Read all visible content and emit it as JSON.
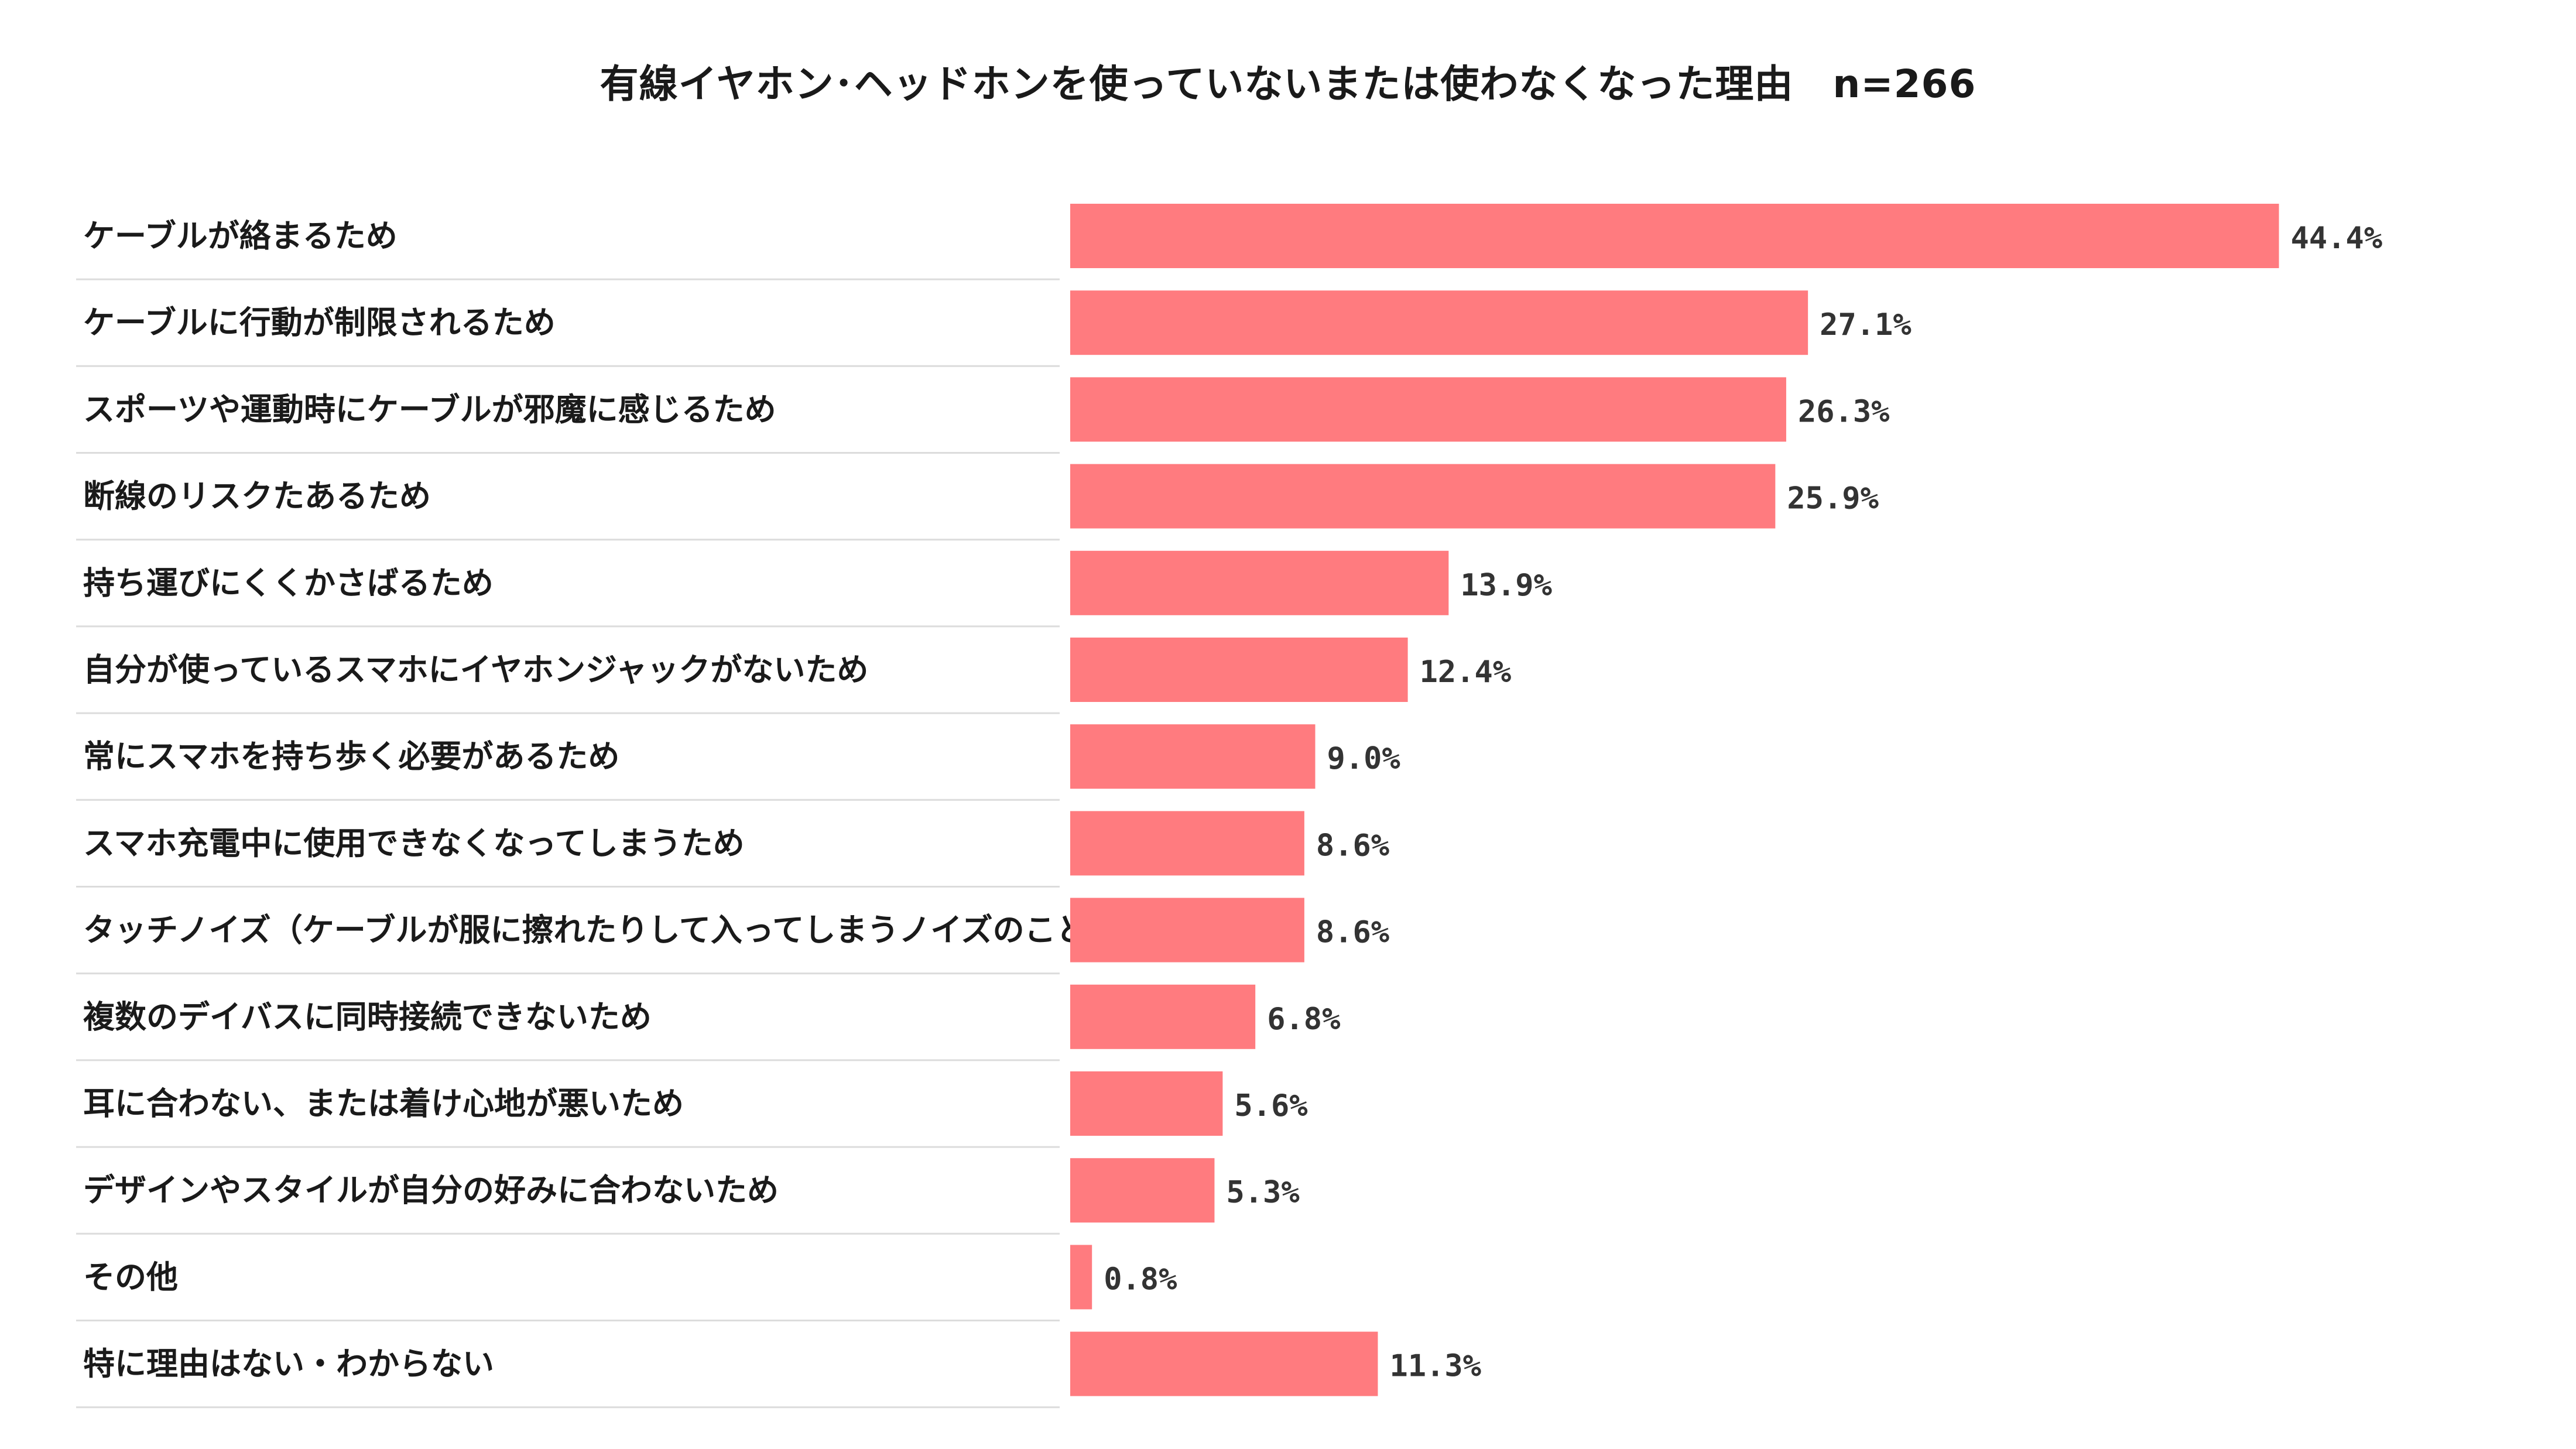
{
  "chart_data": {
    "type": "bar",
    "orientation": "horizontal",
    "title": "有線イヤホン･ヘッドホンを使っていないまたは使わなくなった理由　n=266",
    "categories": [
      "ケーブルが絡まるため",
      "ケーブルに行動が制限されるため",
      "スポーツや運動時にケーブルが邪魔に感じるため",
      "断線のリスクたあるため",
      "持ち運びにくくかさばるため",
      "自分が使っているスマホにイヤホンジャックがないため",
      "常にスマホを持ち歩く必要があるため",
      "スマホ充電中に使用できなくなってしまうため",
      "タッチノイズ（ケーブルが服に擦れたりして入ってしまうノイズのこと）",
      "複数のデイバスに同時接続できないため",
      "耳に合わない、または着け心地が悪いため",
      "デザインやスタイルが自分の好みに合わないため",
      "その他",
      "特に理由はない・わからない"
    ],
    "values": [
      44.4,
      27.1,
      26.3,
      25.9,
      13.9,
      12.4,
      9.0,
      8.6,
      8.6,
      6.8,
      5.6,
      5.3,
      0.8,
      11.3
    ],
    "value_labels": [
      "44.4%",
      "27.1%",
      "26.3%",
      "25.9%",
      "13.9%",
      "12.4%",
      "9.0%",
      "8.6%",
      "8.6%",
      "6.8%",
      "5.6%",
      "5.3%",
      "0.8%",
      "11.3%"
    ],
    "unit": "%",
    "xlim": [
      0,
      50
    ],
    "bar_color": "#ff7b7f",
    "separator_color": "#dcdcdc",
    "grid": false,
    "legend": "none"
  }
}
